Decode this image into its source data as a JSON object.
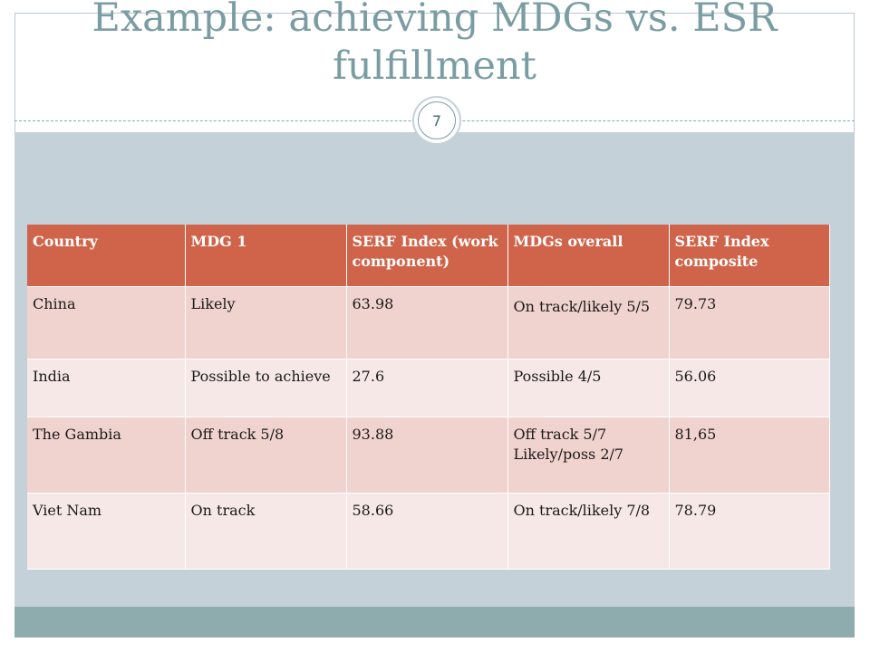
{
  "slide": {
    "title": "Example: achieving MDGs vs. ESR fulfillment",
    "slide_number": "7"
  },
  "table": {
    "headers": [
      "Country",
      "MDG 1",
      "SERF Index (work component)",
      "MDGs overall",
      "SERF Index composite"
    ],
    "rows": [
      [
        "China",
        "Likely",
        "63.98",
        "On track/likely 5/5",
        "79.73"
      ],
      [
        "India",
        "Possible to achieve",
        "27.6",
        "Possible 4/5",
        "56.06"
      ],
      [
        "The Gambia",
        "Off track 5/8",
        "93.88",
        "Off track 5/7 Likely/poss 2/7",
        "81,65"
      ],
      [
        "Viet Nam",
        "On track",
        "58.66",
        "On track/likely 7/8",
        "78.79"
      ]
    ]
  },
  "colors": {
    "title": "#7a9da3",
    "header_bg": "#d0644a",
    "row_odd_bg": "#f0d2ce",
    "row_even_bg": "#f6e8e7",
    "panel_bg": "#c5d1d8",
    "footer_bg": "#8eacae"
  }
}
